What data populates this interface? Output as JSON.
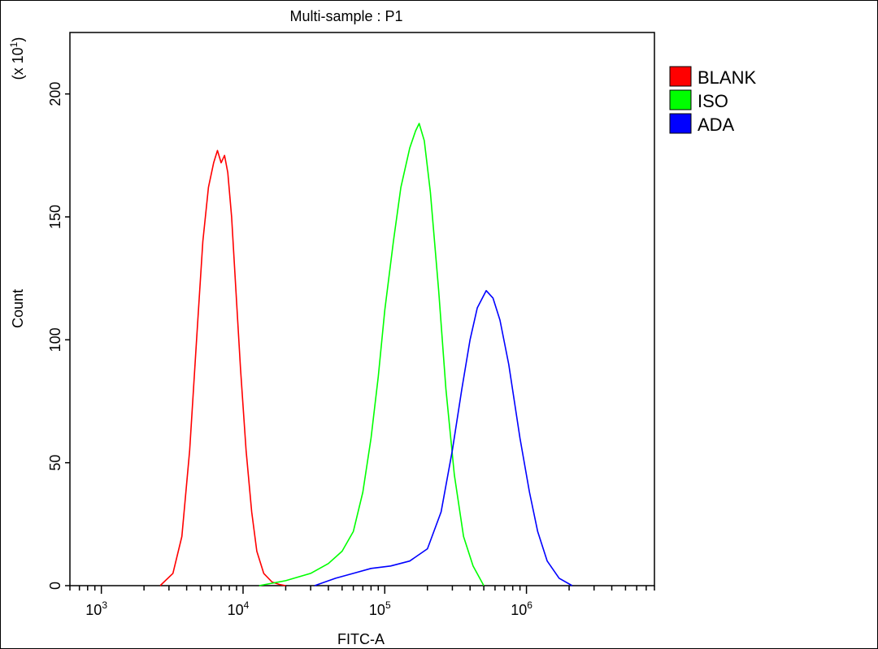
{
  "chart_data": {
    "type": "line",
    "title": "Multi-sample : P1",
    "xlabel": "FITC-A",
    "ylabel": "Count",
    "y_multiplier": "(x 10",
    "y_multiplier_exp": "1",
    "y_multiplier_close": ")",
    "x_scale": "log",
    "xlim": [
      600,
      8000000
    ],
    "ylim": [
      0,
      225
    ],
    "y_ticks": [
      0,
      50,
      100,
      150,
      200
    ],
    "x_ticks": [
      {
        "base": "10",
        "exp": "3",
        "value": 1000
      },
      {
        "base": "10",
        "exp": "4",
        "value": 10000
      },
      {
        "base": "10",
        "exp": "5",
        "value": 100000
      },
      {
        "base": "10",
        "exp": "6",
        "value": 1000000
      }
    ],
    "legend_position": "right",
    "series": [
      {
        "name": "BLANK",
        "color": "#ff0000",
        "x": [
          2600,
          3200,
          3700,
          4200,
          4700,
          5200,
          5700,
          6200,
          6600,
          7000,
          7400,
          7800,
          8300,
          8900,
          9600,
          10500,
          11500,
          12500,
          14000,
          16000,
          18000,
          20000
        ],
        "y": [
          0,
          5,
          20,
          55,
          100,
          140,
          162,
          172,
          177,
          172,
          175,
          168,
          150,
          120,
          88,
          55,
          30,
          14,
          5,
          1.5,
          0.5,
          0
        ]
      },
      {
        "name": "ISO",
        "color": "#00ff00",
        "x": [
          13000,
          20000,
          30000,
          40000,
          50000,
          60000,
          70000,
          80000,
          90000,
          100000,
          115000,
          130000,
          150000,
          165000,
          175000,
          190000,
          210000,
          240000,
          270000,
          310000,
          360000,
          420000,
          500000
        ],
        "y": [
          0,
          2,
          5,
          9,
          14,
          22,
          38,
          60,
          85,
          112,
          140,
          162,
          178,
          185,
          188,
          181,
          160,
          120,
          80,
          45,
          20,
          8,
          0
        ]
      },
      {
        "name": "ADA",
        "color": "#0000ff",
        "x": [
          32000,
          45000,
          60000,
          80000,
          110000,
          150000,
          200000,
          250000,
          300000,
          350000,
          400000,
          450000,
          520000,
          580000,
          650000,
          750000,
          900000,
          1050000,
          1200000,
          1400000,
          1700000,
          2100000
        ],
        "y": [
          0,
          3,
          5,
          7,
          8,
          10,
          15,
          30,
          55,
          80,
          100,
          113,
          120,
          117,
          108,
          90,
          60,
          38,
          22,
          10,
          3,
          0
        ]
      }
    ]
  }
}
